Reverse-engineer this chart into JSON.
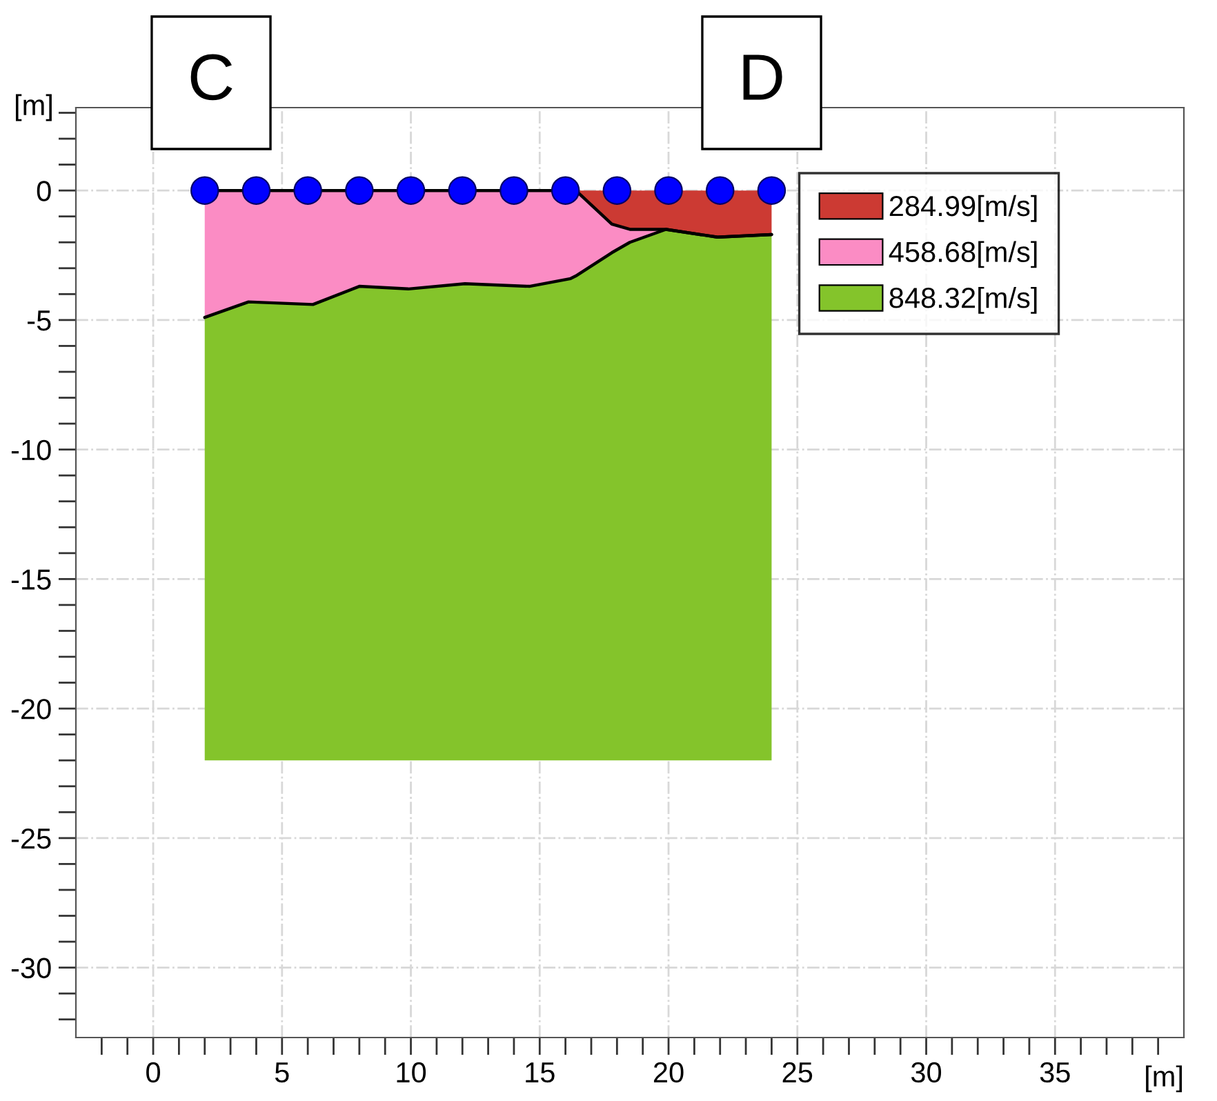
{
  "chart_data": {
    "type": "area",
    "xlabel": "[m]",
    "ylabel": "[m]",
    "annotations": [
      "C",
      "D"
    ],
    "xlim": [
      -3,
      40
    ],
    "ylim": [
      -32.7,
      3.2
    ],
    "xticks": [
      {
        "value": -2,
        "label": null
      },
      {
        "value": -1,
        "label": null
      },
      0,
      {
        "value": 1,
        "label": null
      },
      {
        "value": 2,
        "label": null
      },
      {
        "value": 3,
        "label": null
      },
      {
        "value": 4,
        "label": null
      },
      5,
      {
        "value": 6,
        "label": null
      },
      {
        "value": 7,
        "label": null
      },
      {
        "value": 8,
        "label": null
      },
      {
        "value": 9,
        "label": null
      },
      10,
      {
        "value": 11,
        "label": null
      },
      {
        "value": 12,
        "label": null
      },
      {
        "value": 13,
        "label": null
      },
      {
        "value": 14,
        "label": null
      },
      15,
      {
        "value": 16,
        "label": null
      },
      {
        "value": 17,
        "label": null
      },
      {
        "value": 18,
        "label": null
      },
      {
        "value": 19,
        "label": null
      },
      20,
      {
        "value": 21,
        "label": null
      },
      {
        "value": 22,
        "label": null
      },
      {
        "value": 23,
        "label": null
      },
      {
        "value": 24,
        "label": null
      },
      25,
      {
        "value": 26,
        "label": null
      },
      {
        "value": 27,
        "label": null
      },
      {
        "value": 28,
        "label": null
      },
      {
        "value": 29,
        "label": null
      },
      30,
      {
        "value": 31,
        "label": null
      },
      {
        "value": 32,
        "label": null
      },
      {
        "value": 33,
        "label": null
      },
      {
        "value": 34,
        "label": null
      },
      35,
      {
        "value": 36,
        "label": null
      },
      {
        "value": 37,
        "label": null
      },
      {
        "value": 38,
        "label": null
      },
      {
        "value": 39,
        "label": null
      }
    ],
    "yticks": [
      {
        "value": 3,
        "label": null
      },
      {
        "value": 2,
        "label": null
      },
      {
        "value": 1,
        "label": null
      },
      0,
      {
        "value": -1,
        "label": null
      },
      {
        "value": -2,
        "label": null
      },
      {
        "value": -3,
        "label": null
      },
      {
        "value": -4,
        "label": null
      },
      -5,
      {
        "value": -6,
        "label": null
      },
      {
        "value": -7,
        "label": null
      },
      {
        "value": -8,
        "label": null
      },
      {
        "value": -9,
        "label": null
      },
      -10,
      {
        "value": -11,
        "label": null
      },
      {
        "value": -12,
        "label": null
      },
      {
        "value": -13,
        "label": null
      },
      {
        "value": -14,
        "label": null
      },
      -15,
      {
        "value": -16,
        "label": null
      },
      {
        "value": -17,
        "label": null
      },
      {
        "value": -18,
        "label": null
      },
      {
        "value": -19,
        "label": null
      },
      -20,
      {
        "value": -21,
        "label": null
      },
      {
        "value": -22,
        "label": null
      },
      {
        "value": -23,
        "label": null
      },
      {
        "value": -24,
        "label": null
      },
      -25,
      {
        "value": -26,
        "label": null
      },
      {
        "value": -27,
        "label": null
      },
      {
        "value": -28,
        "label": null
      },
      {
        "value": -29,
        "label": null
      },
      -30,
      {
        "value": -31,
        "label": null
      },
      {
        "value": -32,
        "label": null
      }
    ],
    "grid": true,
    "legend": "top right",
    "stacked": true,
    "x": [
      2,
      3.7,
      6.2,
      8,
      9.9,
      12.1,
      14.6,
      16.2,
      16.4,
      17.8,
      18.5,
      19.9,
      21.9,
      24
    ],
    "series": [
      {
        "name": "284.99[m/s]",
        "color": "#cc3a33",
        "values": [
          0,
          0,
          0,
          0,
          0,
          0,
          0,
          0,
          0,
          -1.3,
          -1.5,
          -1.5,
          -1.8,
          -1.7
        ]
      },
      {
        "name": "458.68[m/s]",
        "color": "#fb8cc4",
        "values": [
          -4.9,
          -4.3,
          -4.4,
          -3.7,
          -3.8,
          -3.6,
          -3.7,
          -3.4,
          -3.3,
          -1.1,
          -0.5,
          0,
          0,
          0
        ]
      },
      {
        "name": "848.32[m/s]",
        "color": "#84c42b",
        "values": [
          -17.1,
          -17.7,
          -17.6,
          -18.3,
          -18.2,
          -18.4,
          -18.3,
          -18.6,
          -18.7,
          -19.6,
          -20.0,
          -20.5,
          -20.2,
          -20.3
        ]
      },
      {
        "color": "#0000ff",
        "type": "scatter",
        "marker": "circle",
        "x": [
          2,
          4,
          6,
          8,
          10,
          12,
          14,
          16,
          18,
          20,
          22,
          24
        ],
        "values": [
          0,
          0,
          0,
          0,
          0,
          0,
          0,
          0,
          0,
          0,
          0,
          0
        ]
      }
    ]
  }
}
